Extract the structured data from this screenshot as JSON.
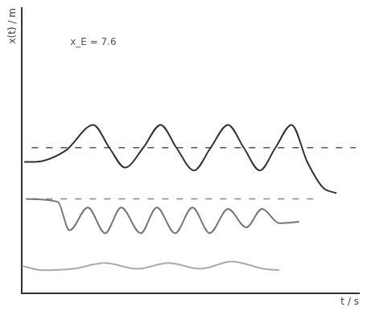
{
  "chart_data": {
    "type": "line",
    "x_label": "t / s",
    "y_label": "x(t) / m",
    "xlim": [
      0,
      10.5
    ],
    "ylim": [
      0,
      10
    ],
    "tick_labels": false,
    "grid": false,
    "annotations": [
      {
        "text": "x_E = 7.6",
        "x": 1.5,
        "y": 8.8
      }
    ],
    "series": [
      {
        "color": "#333333",
        "line_style": "solid",
        "x": [
          0.07,
          0.37,
          1.36,
          2.22,
          2.72,
          3.21,
          3.78,
          4.32,
          4.81,
          5.36,
          5.88,
          6.42,
          6.91,
          7.41,
          7.9,
          8.4,
          8.89,
          9.38,
          9.8
        ],
        "values": [
          4.6,
          4.6,
          5.0,
          5.9,
          5.1,
          4.4,
          5.1,
          5.9,
          5.1,
          4.3,
          5.1,
          5.9,
          5.1,
          4.3,
          5.1,
          5.9,
          4.6,
          3.7,
          3.5
        ]
      },
      {
        "color": "#555555",
        "line_style": "dashed",
        "x": [
          0.3,
          10.4
        ],
        "values": [
          5.1,
          5.1
        ]
      },
      {
        "color": "#777777",
        "line_style": "solid",
        "x": [
          0.12,
          1.11,
          1.48,
          2.05,
          2.59,
          3.09,
          3.7,
          4.2,
          4.77,
          5.31,
          5.85,
          6.42,
          6.99,
          7.48,
          8.02,
          8.64
        ],
        "values": [
          3.3,
          3.2,
          2.2,
          3.0,
          2.1,
          3.0,
          2.1,
          3.0,
          2.1,
          3.0,
          2.1,
          2.95,
          2.3,
          2.95,
          2.45,
          2.5
        ]
      },
      {
        "color": "#888888",
        "line_style": "dashed",
        "x": [
          0.3,
          9.1
        ],
        "values": [
          3.3,
          3.3
        ]
      },
      {
        "color": "#aaaaaa",
        "line_style": "solid",
        "x": [
          0.0,
          0.62,
          1.6,
          2.59,
          3.58,
          4.57,
          5.56,
          6.54,
          7.53,
          8.02
        ],
        "values": [
          0.95,
          0.8,
          0.85,
          1.05,
          0.85,
          1.05,
          0.85,
          1.1,
          0.85,
          0.8
        ]
      }
    ]
  }
}
